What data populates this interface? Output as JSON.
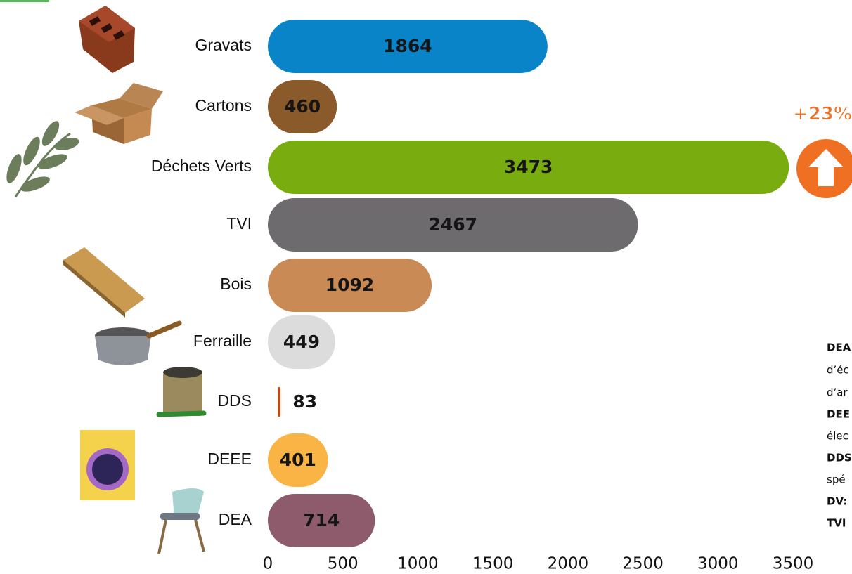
{
  "chart_data": {
    "type": "bar",
    "orientation": "horizontal",
    "categories": [
      "Gravats",
      "Cartons",
      "Déchets Verts",
      "TVI",
      "Bois",
      "Ferraille",
      "DDS",
      "DEEE",
      "DEA"
    ],
    "values": [
      1864,
      460,
      3473,
      2467,
      1092,
      449,
      83,
      401,
      714
    ],
    "colors": [
      "#0a84c8",
      "#8b5a2b",
      "#79ac0e",
      "#6e6b6e",
      "#c98a55",
      "#dcdcdc",
      "#c4470f",
      "#f9b445",
      "#8e5b6d"
    ],
    "xlim": [
      0,
      3500
    ],
    "xticks": [
      0,
      500,
      1000,
      1500,
      2000,
      2500,
      3000,
      3500
    ],
    "annotation": "+23%",
    "notes": [
      "DEA",
      "d’éc",
      "d’ar",
      "DEE",
      "élec",
      "DDS",
      "spé",
      "DV:",
      "TVI"
    ]
  }
}
